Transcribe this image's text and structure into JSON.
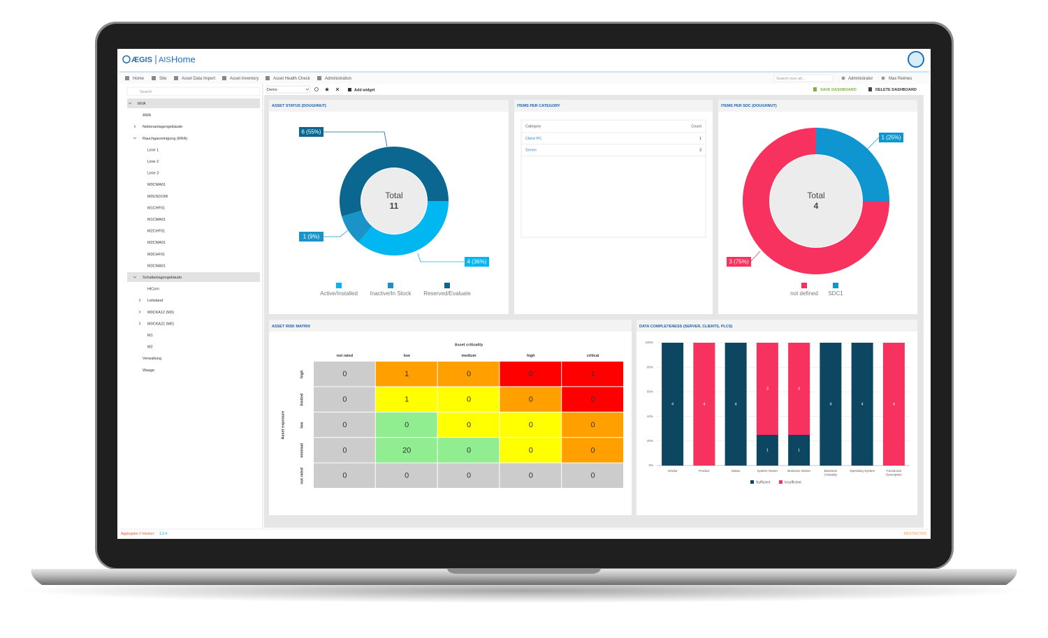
{
  "header": {
    "brand": "ÆGIS",
    "product": "AIS",
    "page_title": "Home"
  },
  "nav": {
    "items": [
      "Home",
      "Site",
      "Asset Data Import",
      "Asset Inventory",
      "Asset Health Check",
      "Administration"
    ],
    "search_placeholder": "Search over all...",
    "user_role": "Administrator",
    "user_name": "Max Reimes"
  },
  "sidebar": {
    "search_placeholder": "Search",
    "tree": [
      {
        "label": "MVA",
        "level": 0,
        "expanded": true,
        "highlighted": true
      },
      {
        "label": "AWA",
        "level": 1
      },
      {
        "label": "Nebenanlagengebäude",
        "level": 1,
        "expanded": false
      },
      {
        "label": "Rauchgasreinigung (RRA)",
        "level": 1,
        "expanded": true
      },
      {
        "label": "Linie 1",
        "level": 2
      },
      {
        "label": "Linie 2",
        "level": 2
      },
      {
        "label": "Linie 3",
        "level": 2
      },
      {
        "label": "M0CMA01",
        "level": 2
      },
      {
        "label": "M0USD19R",
        "level": 2
      },
      {
        "label": "M1CHF01",
        "level": 2
      },
      {
        "label": "M1CMA01",
        "level": 2
      },
      {
        "label": "M2CHF01",
        "level": 2
      },
      {
        "label": "M2CMA01",
        "level": 2
      },
      {
        "label": "M3CHF01",
        "level": 2
      },
      {
        "label": "M3CMA01",
        "level": 2
      },
      {
        "label": "Schaltanlagengebäude",
        "level": 1,
        "expanded": true,
        "highlighted": true
      },
      {
        "label": "HiCom",
        "level": 2
      },
      {
        "label": "Leitstand",
        "level": 2,
        "expanded": false
      },
      {
        "label": "M0CKA12 (M3)",
        "level": 2,
        "expanded": false
      },
      {
        "label": "M0CKA22 (M0)",
        "level": 2,
        "expanded": false
      },
      {
        "label": "M1",
        "level": 2
      },
      {
        "label": "M2",
        "level": 2
      },
      {
        "label": "Verwaltung",
        "level": 1
      },
      {
        "label": "Waage",
        "level": 1
      }
    ]
  },
  "toolbar": {
    "dashboard": "Demo",
    "add_widget": "Add widget",
    "save": "SAVE DASHBOARD",
    "delete": "DELETE DASHBOARD"
  },
  "category_table": {
    "title": "ITEMS PER CATEGORY",
    "columns": [
      "Category",
      "Count"
    ],
    "rows": [
      [
        "Client PC",
        1
      ],
      [
        "Server",
        3
      ]
    ]
  },
  "chart_data": [
    {
      "type": "doughnut",
      "title": "ASSET STATUS (DOUGHNUT)",
      "center_label": "Total",
      "total": 11,
      "categories": [
        "Active/Installed",
        "Inactive/In Stock",
        "Reserved/Evaluate"
      ],
      "values": [
        4,
        1,
        6
      ],
      "value_labels": [
        "4 (36%)",
        "1 (9%)",
        "6 (55%)"
      ],
      "colors": [
        "#00b7f1",
        "#1a93c9",
        "#0b6790"
      ],
      "legend": "bottom"
    },
    {
      "type": "doughnut",
      "title": "ITEMS PER SDC (DOUGHNUT)",
      "center_label": "Total",
      "total": 4,
      "categories": [
        "not defined",
        "SDC1"
      ],
      "values": [
        3,
        1
      ],
      "value_labels": [
        "3 (75%)",
        "1 (25%)"
      ],
      "colors": [
        "#f7325f",
        "#0f95cf"
      ],
      "legend": "bottom"
    },
    {
      "type": "heatmap",
      "title": "ASSET RISK MATRIX",
      "x_label": "Asset criticality",
      "y_label": "Asset exposure",
      "x_categories": [
        "not rated",
        "low",
        "medium",
        "high",
        "critical"
      ],
      "y_categories": [
        "high",
        "limited",
        "low",
        "minimal",
        "not rated"
      ],
      "values": [
        [
          0,
          1,
          0,
          0,
          1
        ],
        [
          0,
          1,
          0,
          0,
          0
        ],
        [
          0,
          0,
          0,
          0,
          0
        ],
        [
          0,
          20,
          0,
          0,
          0
        ],
        [
          0,
          0,
          0,
          0,
          0
        ]
      ],
      "colors": [
        [
          "#cccccc",
          "#ff9f00",
          "#ff9f00",
          "#ff0000",
          "#ff0000"
        ],
        [
          "#cccccc",
          "#ffff00",
          "#ffff00",
          "#ff9f00",
          "#ff0000"
        ],
        [
          "#cccccc",
          "#90ee90",
          "#ffff00",
          "#ffff00",
          "#ff9f00"
        ],
        [
          "#cccccc",
          "#90ee90",
          "#90ee90",
          "#ffff00",
          "#ff9f00"
        ],
        [
          "#cccccc",
          "#cccccc",
          "#cccccc",
          "#cccccc",
          "#cccccc"
        ]
      ]
    },
    {
      "type": "bar",
      "stacking": "percent",
      "title": "DATA COMPLETENESS (SERVER, CLIENTS, PLCS)",
      "categories": [
        "Vendor",
        "Product",
        "Status",
        "System Owner",
        "Business Owner",
        "Business Criticality",
        "Operating System",
        "Functional Description"
      ],
      "series": [
        {
          "name": "Sufficient",
          "color": "#0d4660",
          "values": [
            4,
            0,
            4,
            1,
            1,
            4,
            4,
            0
          ]
        },
        {
          "name": "Insufficient",
          "color": "#f7325f",
          "values": [
            0,
            4,
            0,
            3,
            3,
            0,
            0,
            4
          ]
        }
      ],
      "ylim": [
        0,
        100
      ],
      "yticks": [
        {
          "value": 0,
          "label": "0%"
        },
        {
          "value": 20,
          "label": "20%"
        },
        {
          "value": 40,
          "label": "40%"
        },
        {
          "value": 60,
          "label": "60%"
        },
        {
          "value": 80,
          "label": "80%"
        },
        {
          "value": 100,
          "label": "100%"
        }
      ],
      "grid": true,
      "legend": "bottom"
    }
  ],
  "footer": {
    "left": "Aggregator // Version:",
    "version": "1.0.4",
    "right": "RESTRICTED"
  }
}
